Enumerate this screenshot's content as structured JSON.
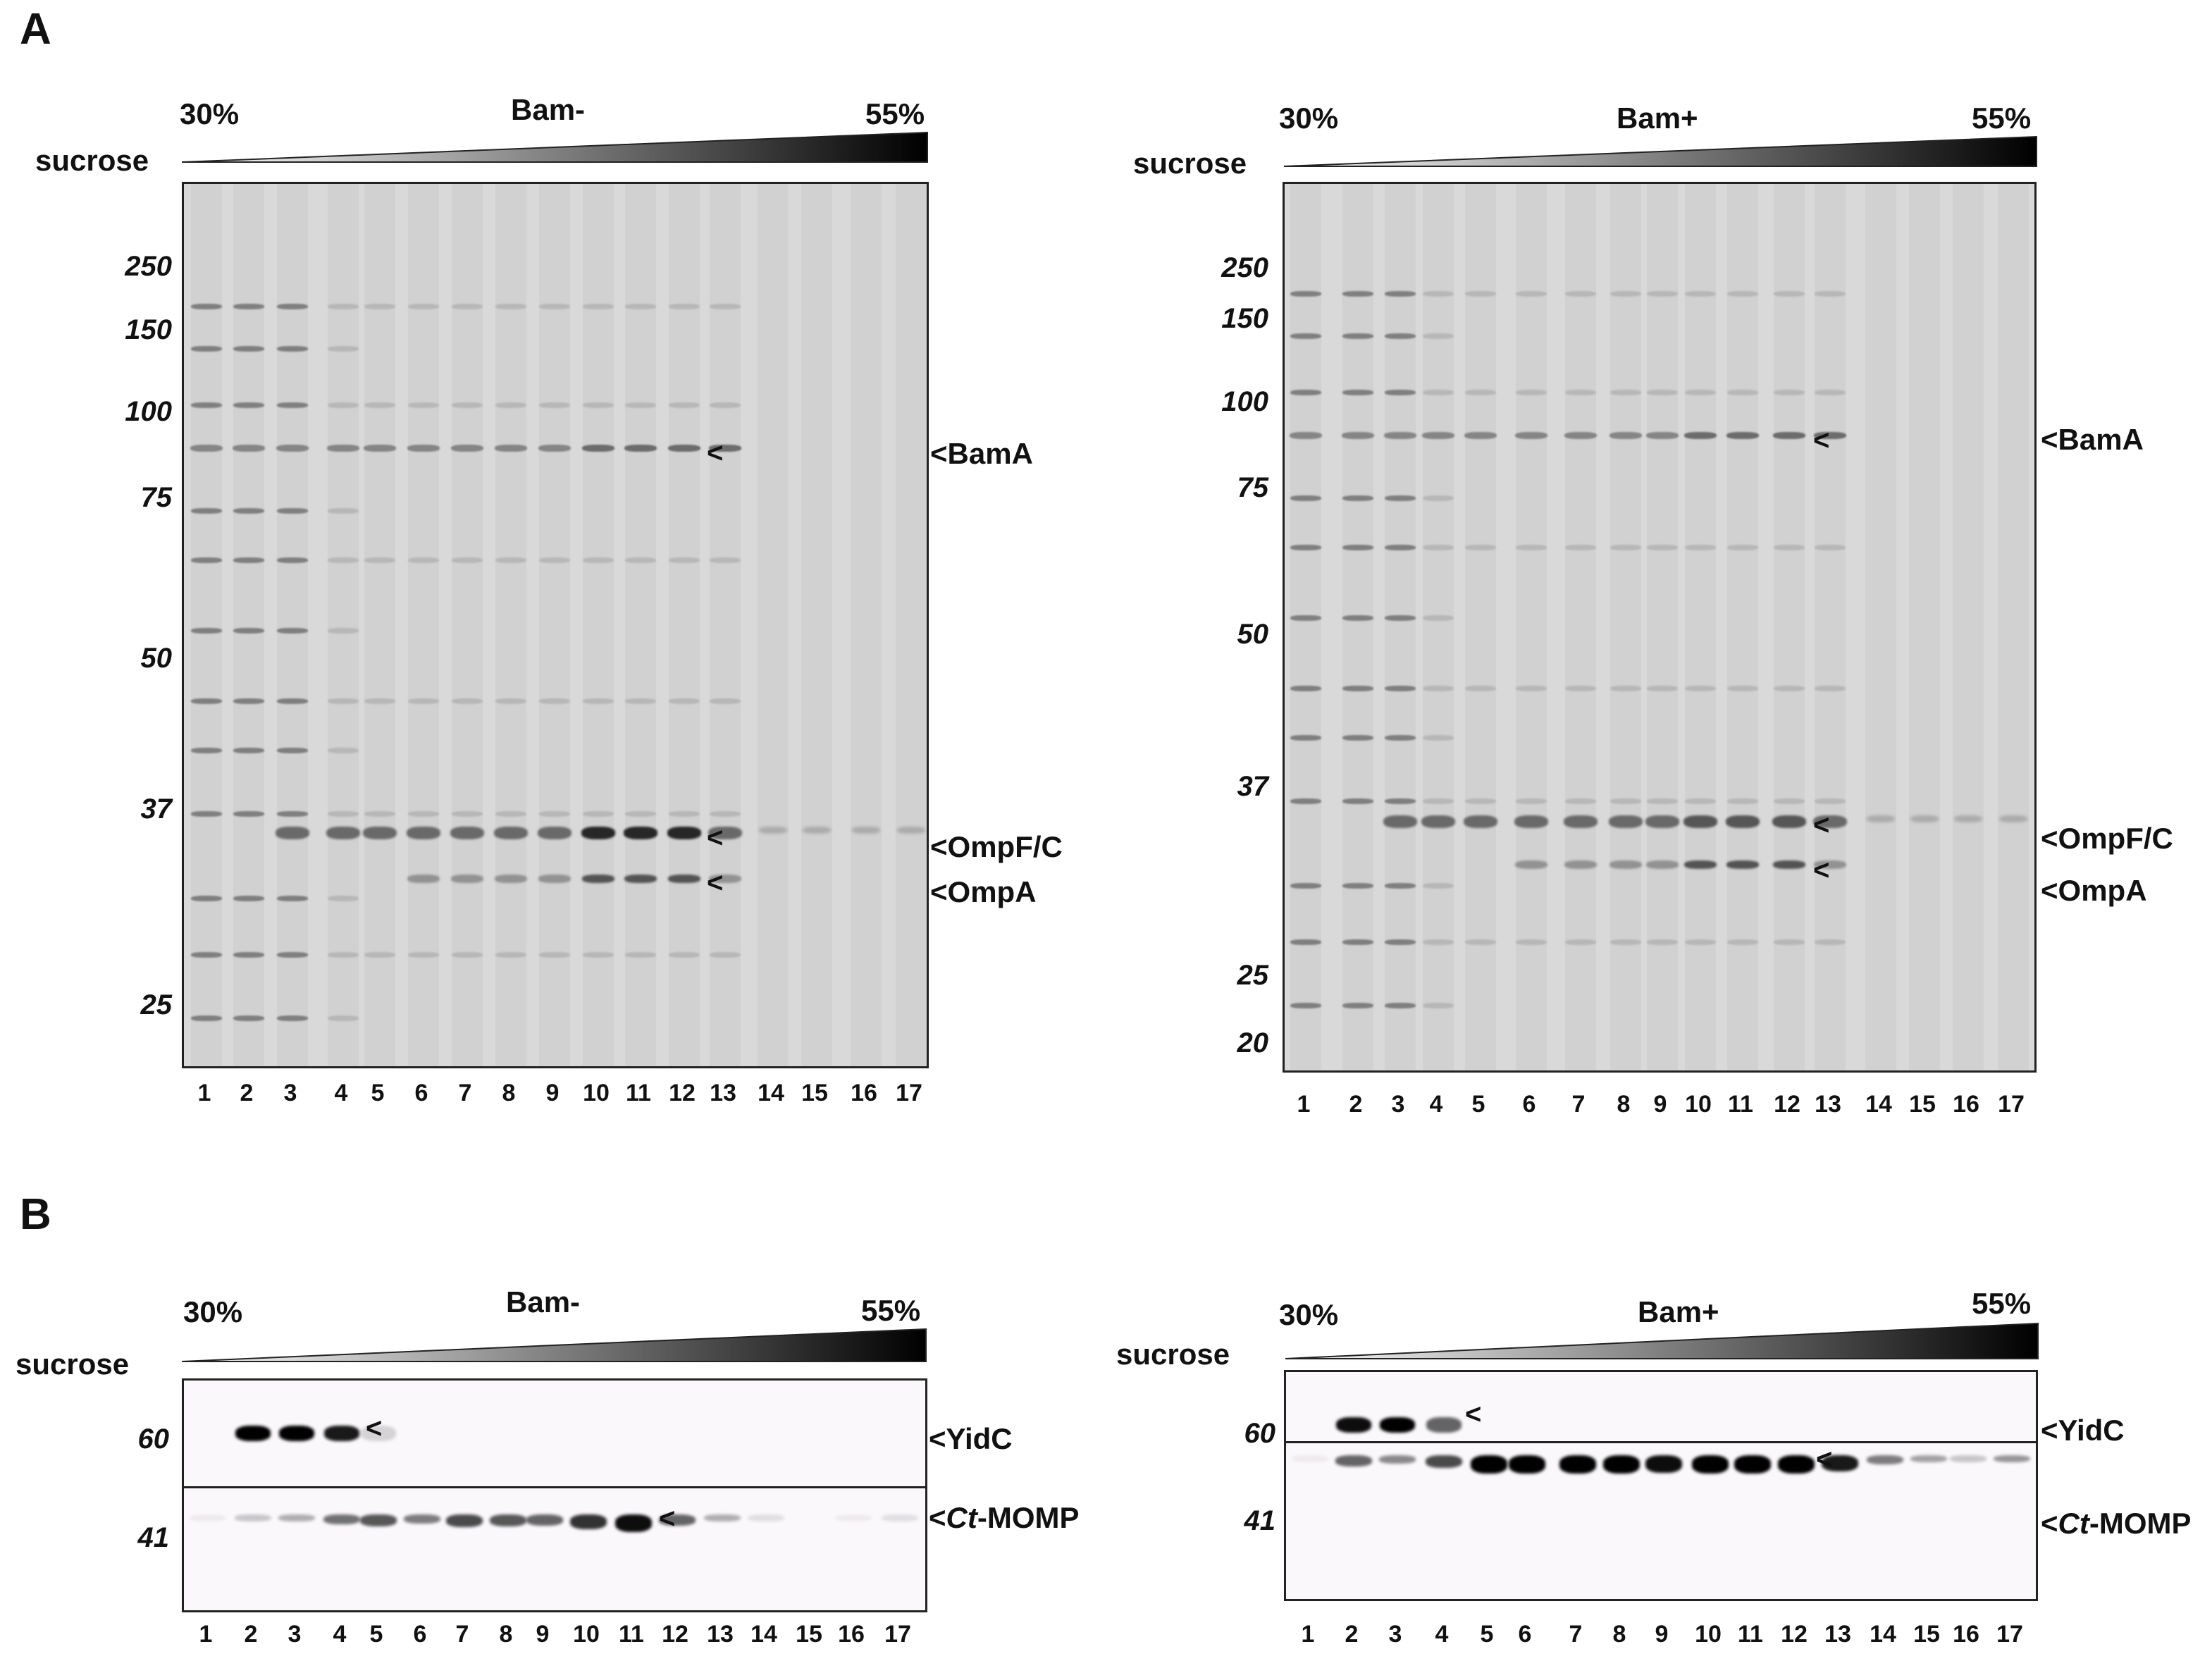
{
  "panels": {
    "A": {
      "letter": "A"
    },
    "B": {
      "letter": "B"
    }
  },
  "gradient": {
    "low": "30%",
    "high": "55%",
    "label": "sucrose"
  },
  "conditions": {
    "minus": "Bam-",
    "plus": "Bam+"
  },
  "lanes": [
    "1",
    "2",
    "3",
    "4",
    "5",
    "6",
    "7",
    "8",
    "9",
    "10",
    "11",
    "12",
    "13",
    "14",
    "15",
    "16",
    "17"
  ],
  "markers_A_left": [
    "250",
    "150",
    "100",
    "75",
    "50",
    "37",
    "25"
  ],
  "markers_A_right": [
    "250",
    "150",
    "100",
    "75",
    "50",
    "37",
    "25",
    "20"
  ],
  "markers_B": [
    "60",
    "41"
  ],
  "bands_A": {
    "bama": "BamA",
    "ompfc": "OmpF/C",
    "ompa": "OmpA"
  },
  "bands_B": {
    "yidc": "YidC",
    "ct_prefix": "Ct",
    "momp_suffix": "-MOMP"
  },
  "arrow": "<"
}
